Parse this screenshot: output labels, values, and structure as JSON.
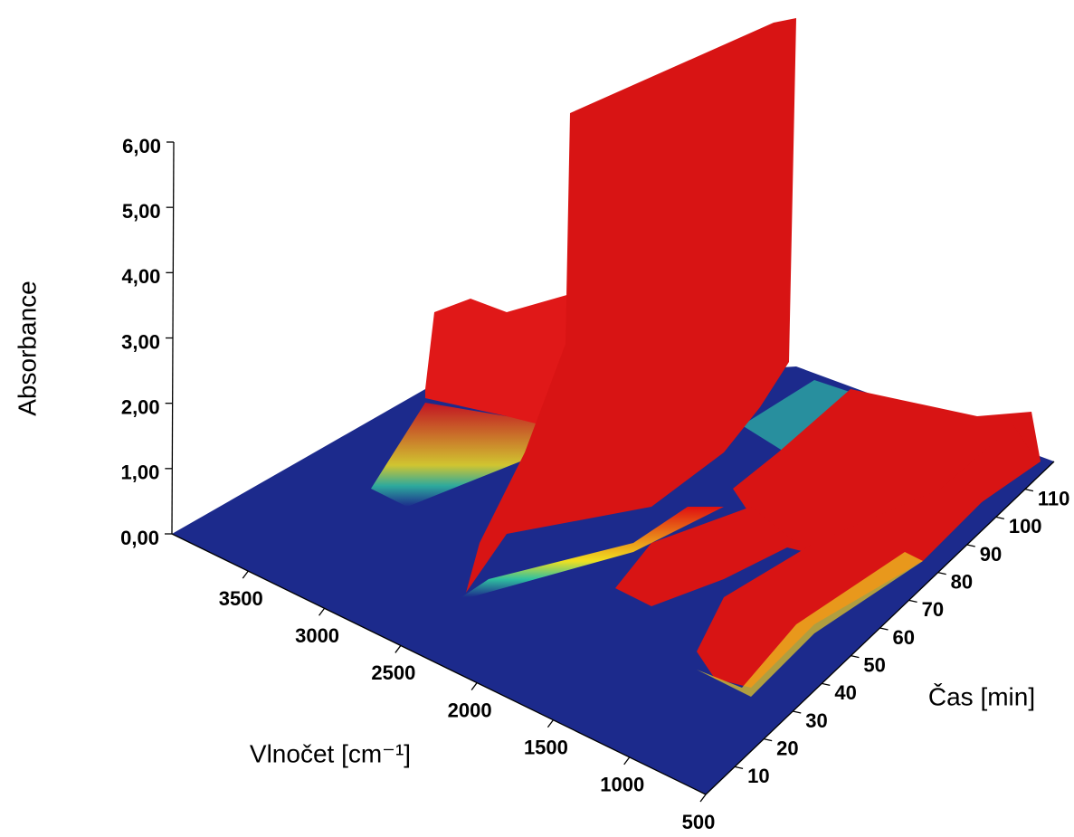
{
  "chart_data": {
    "type": "surface3d",
    "xlabel": "Vlnočet [cm⁻¹]",
    "ylabel": "Čas [min]",
    "zlabel": "Absorbance",
    "xlim": [
      4000,
      500
    ],
    "xticks": [
      3500,
      3000,
      2500,
      2000,
      1500,
      1000,
      500
    ],
    "ylim": [
      0,
      120
    ],
    "yticks": [
      10,
      20,
      30,
      40,
      50,
      60,
      70,
      80,
      90,
      100,
      110
    ],
    "zlim": [
      0,
      6
    ],
    "zticks": [
      {
        "value": 0,
        "label": "0,00"
      },
      {
        "value": 1,
        "label": "1,00"
      },
      {
        "value": 2,
        "label": "2,00"
      },
      {
        "value": 3,
        "label": "3,00"
      },
      {
        "value": 4,
        "label": "4,00"
      },
      {
        "value": 5,
        "label": "5,00"
      },
      {
        "value": 6,
        "label": "6,00"
      }
    ]
  }
}
